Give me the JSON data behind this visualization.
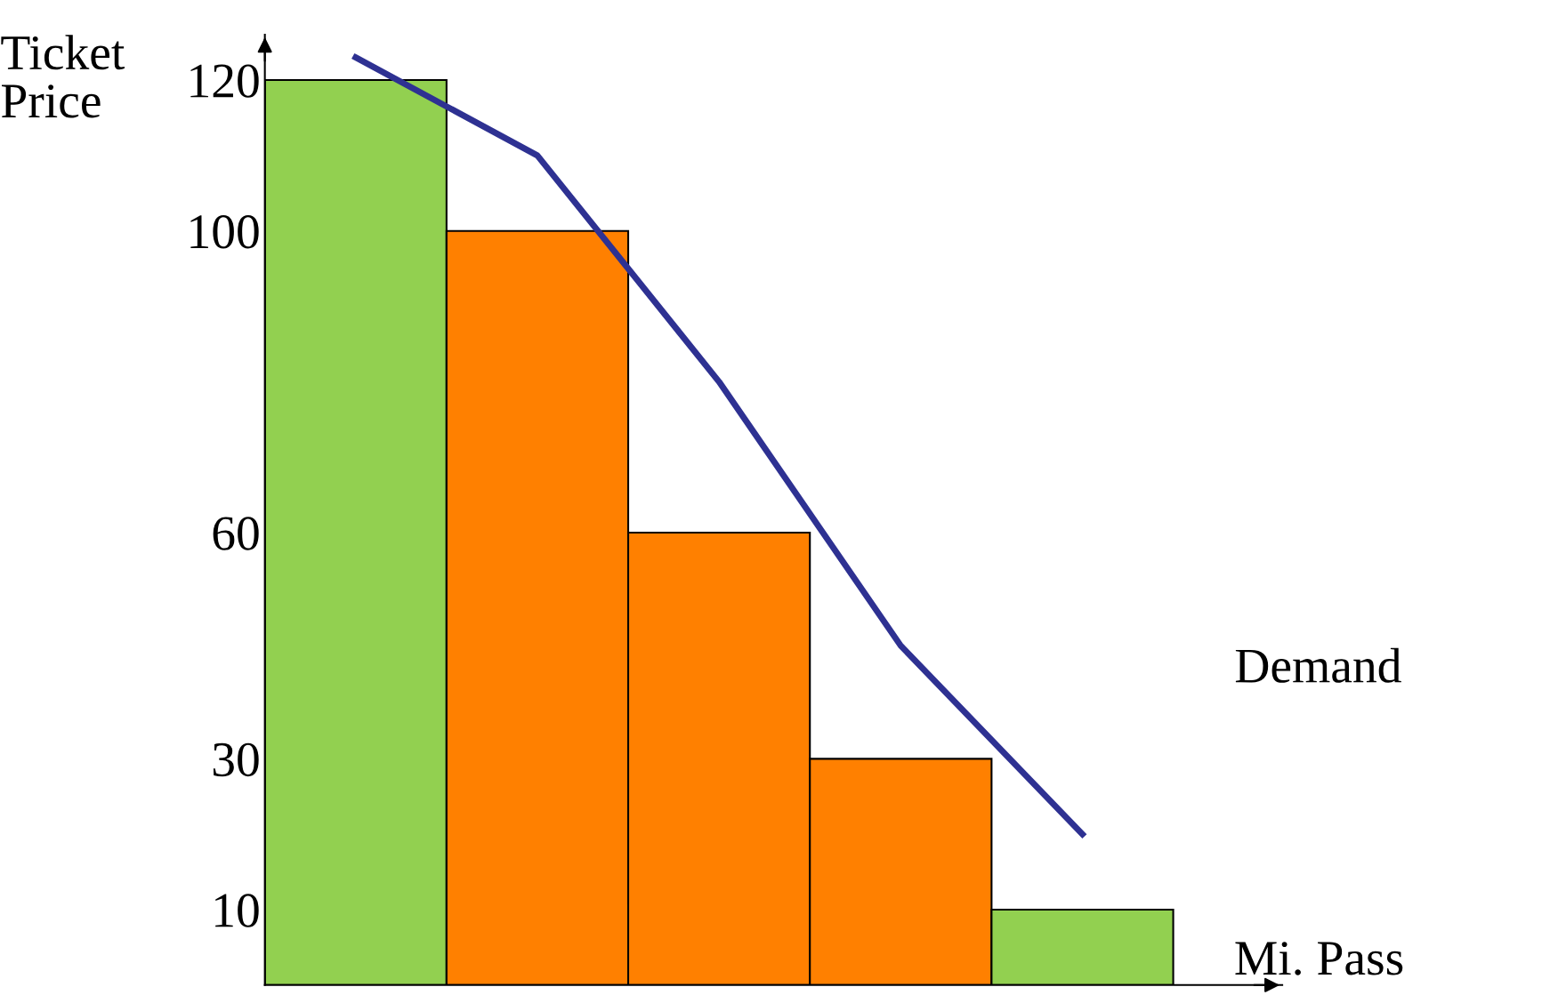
{
  "chart_data": {
    "type": "bar",
    "ylabel": "Ticket\nPrice",
    "xlabel": "Mi. Pass",
    "categories": [
      null,
      null,
      null,
      null,
      null
    ],
    "values": [
      120,
      100,
      60,
      30,
      10
    ],
    "colors": [
      "#92d050",
      "#ff8000",
      "#ff8000",
      "#ff8000",
      "#92d050"
    ],
    "series": [
      {
        "type": "line",
        "name": "Demand",
        "color": "#2e3192",
        "values": [
          123,
          110,
          80,
          45,
          20
        ]
      }
    ],
    "ylim": [
      0,
      126
    ],
    "yticks": [
      10,
      30,
      60,
      100,
      120
    ],
    "tick_labels": "y",
    "grid": false,
    "legend": false
  }
}
